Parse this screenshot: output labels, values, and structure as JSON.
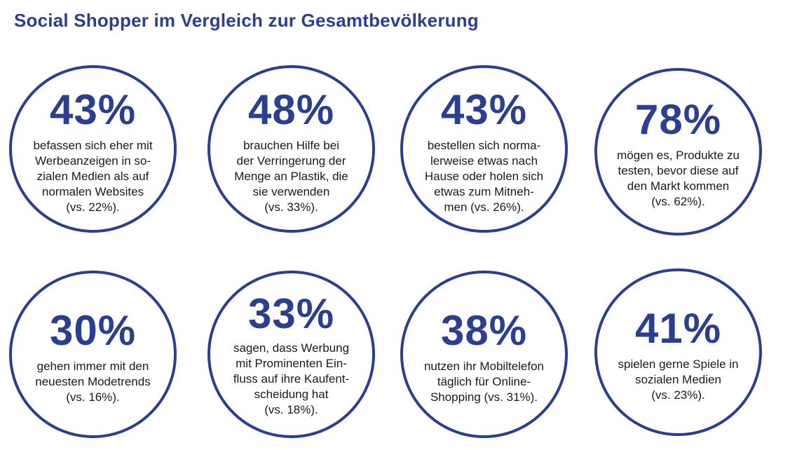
{
  "title": "Social Shopper im Vergleich zur Gesamtbevölkerung",
  "stats": [
    {
      "value": "43%",
      "text": "befassen sich eher mit\nWerbeanzeigen in so-\nzialen Medien als auf\nnormalen Websites\n(vs. 22%)."
    },
    {
      "value": "48%",
      "text": "brauchen Hilfe bei\nder Verringerung der\nMenge an Plastik, die\nsie verwenden\n(vs. 33%)."
    },
    {
      "value": "43%",
      "text": "bestellen sich norma-\nlerweise etwas nach\nHause oder holen sich\netwas zum Mitneh-\nmen (vs. 26%)."
    },
    {
      "value": "78%",
      "text": "mögen es, Produkte zu\ntesten, bevor diese auf\nden Markt kommen\n(vs. 62%)."
    },
    {
      "value": "30%",
      "text": "gehen immer mit den\nneuesten Modetrends\n(vs. 16%)."
    },
    {
      "value": "33%",
      "text": "sagen, dass Werbung\nmit Prominenten Ein-\nfluss auf ihre Kaufent-\nscheidung hat\n(vs. 18%)."
    },
    {
      "value": "38%",
      "text": "nutzen ihr Mobiltelefon\ntäglich für Online-\nShopping (vs. 31%)."
    },
    {
      "value": "41%",
      "text": "spielen gerne Spiele in\nsozialen Medien\n(vs. 23%)."
    }
  ],
  "colors": {
    "accent": "#2b3f91",
    "text": "#1a1a1a",
    "background": "#ffffff"
  }
}
